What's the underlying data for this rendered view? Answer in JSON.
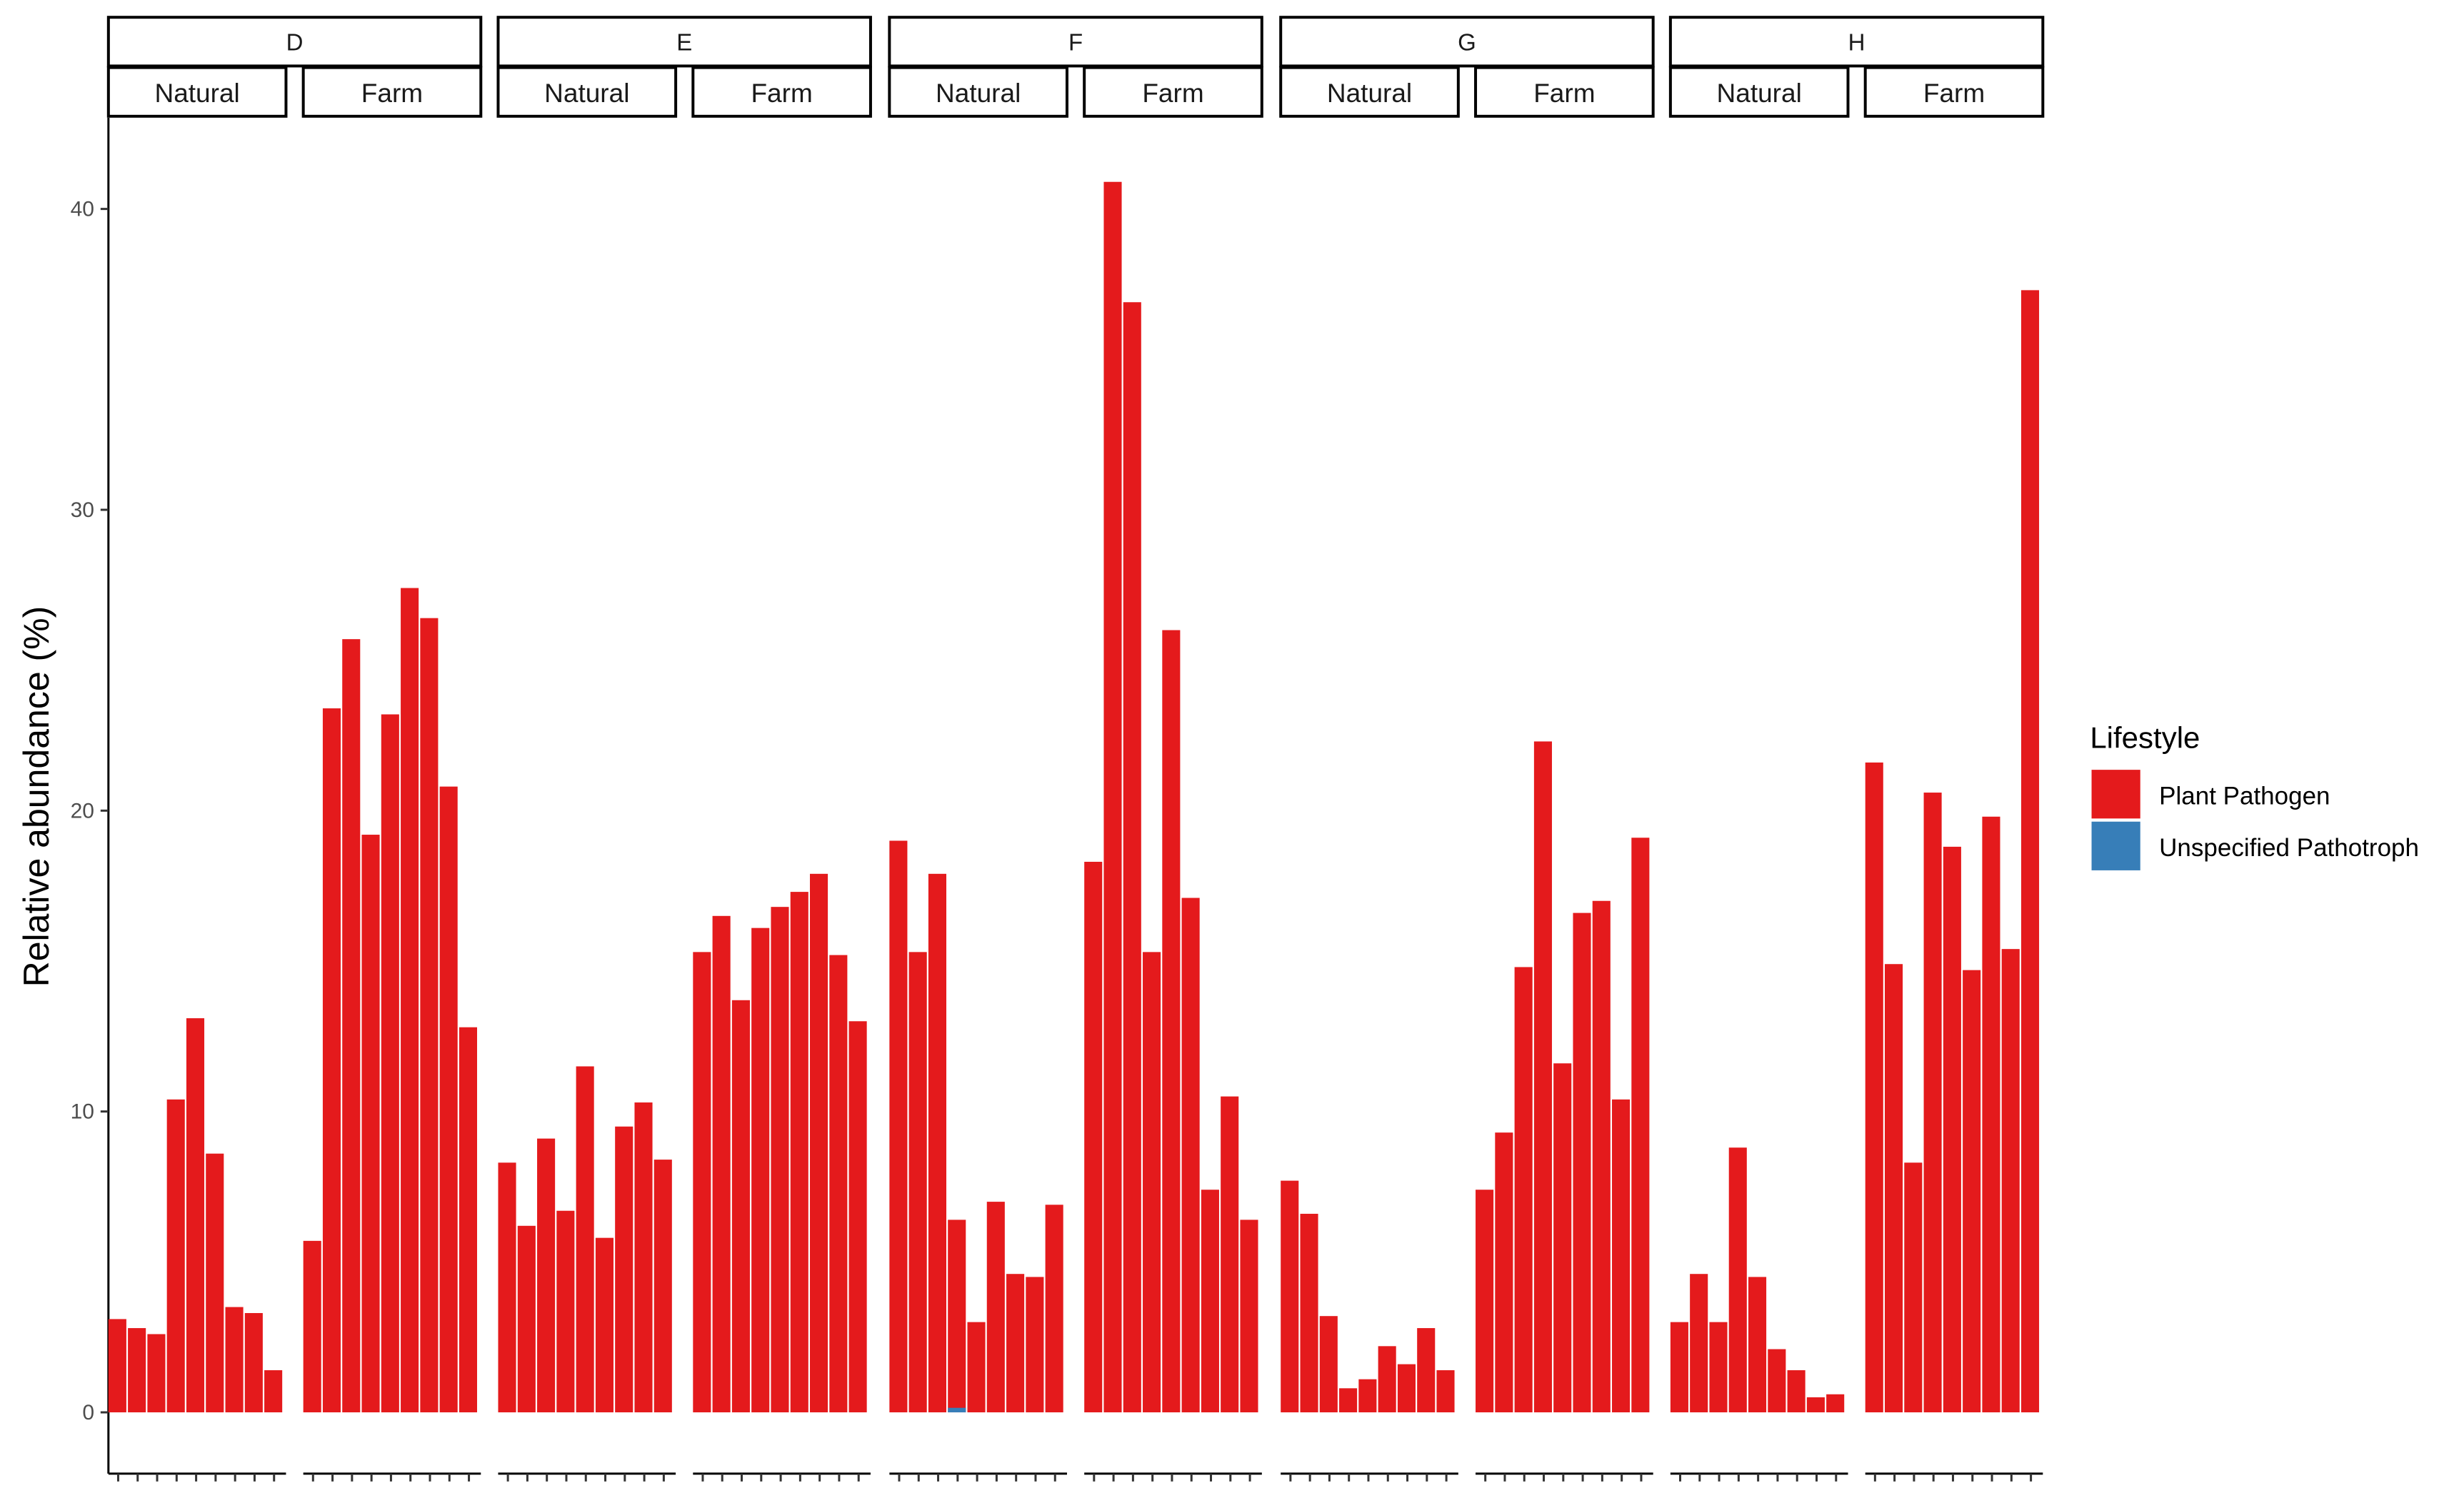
{
  "chart_data": {
    "type": "bar",
    "stacked": true,
    "ylabel": "Relative abundance (%)",
    "xlabel": "",
    "ylim": [
      -4,
      43
    ],
    "y_ticks": [
      0,
      10,
      20,
      30,
      40
    ],
    "grid": false,
    "legend": {
      "title": "Lifestyle",
      "placement": "right",
      "entries": [
        {
          "label": "Plant Pathogen",
          "color": "#E41A1C"
        },
        {
          "label": "Unspecified Pathotroph",
          "color": "#377EB8"
        }
      ]
    },
    "panels": [
      {
        "group": "D",
        "sub": [
          {
            "label": "Natural",
            "values": [
              3.1,
              2.8,
              2.6,
              10.4,
              13.1,
              8.6,
              3.5,
              3.3,
              1.4
            ]
          },
          {
            "label": "Farm",
            "values": [
              5.7,
              23.4,
              25.7,
              19.2,
              23.2,
              27.4,
              26.4,
              20.8,
              12.8
            ]
          }
        ]
      },
      {
        "group": "E",
        "sub": [
          {
            "label": "Natural",
            "values": [
              8.3,
              6.2,
              9.1,
              6.7,
              11.5,
              5.8,
              9.5,
              10.3,
              8.4
            ]
          },
          {
            "label": "Farm",
            "values": [
              15.3,
              16.5,
              13.7,
              16.1,
              16.8,
              17.3,
              17.9,
              15.2,
              13.0
            ]
          }
        ]
      },
      {
        "group": "F",
        "sub": [
          {
            "label": "Natural",
            "values": [
              19.0,
              15.3,
              17.9,
              6.4,
              3.0,
              7.0,
              4.6,
              4.5,
              6.9
            ],
            "unspecified": [
              0,
              0,
              0,
              0.15,
              0,
              0,
              0,
              0,
              0
            ]
          },
          {
            "label": "Farm",
            "values": [
              18.3,
              40.9,
              36.9,
              15.3,
              26.0,
              17.1,
              7.4,
              10.5,
              6.4
            ]
          }
        ]
      },
      {
        "group": "G",
        "sub": [
          {
            "label": "Natural",
            "values": [
              7.7,
              6.6,
              3.2,
              0.8,
              1.1,
              2.2,
              1.6,
              2.8,
              1.4
            ]
          },
          {
            "label": "Farm",
            "values": [
              7.4,
              9.3,
              14.8,
              22.3,
              11.6,
              16.6,
              17.0,
              10.4,
              19.1
            ]
          }
        ]
      },
      {
        "group": "H",
        "sub": [
          {
            "label": "Natural",
            "values": [
              3.0,
              4.6,
              3.0,
              8.8,
              4.5,
              2.1,
              1.4,
              0.5,
              0.6
            ]
          },
          {
            "label": "Farm",
            "values": [
              21.6,
              14.9,
              8.3,
              20.6,
              18.8,
              14.7,
              19.8,
              15.4,
              37.3
            ]
          }
        ]
      }
    ]
  }
}
